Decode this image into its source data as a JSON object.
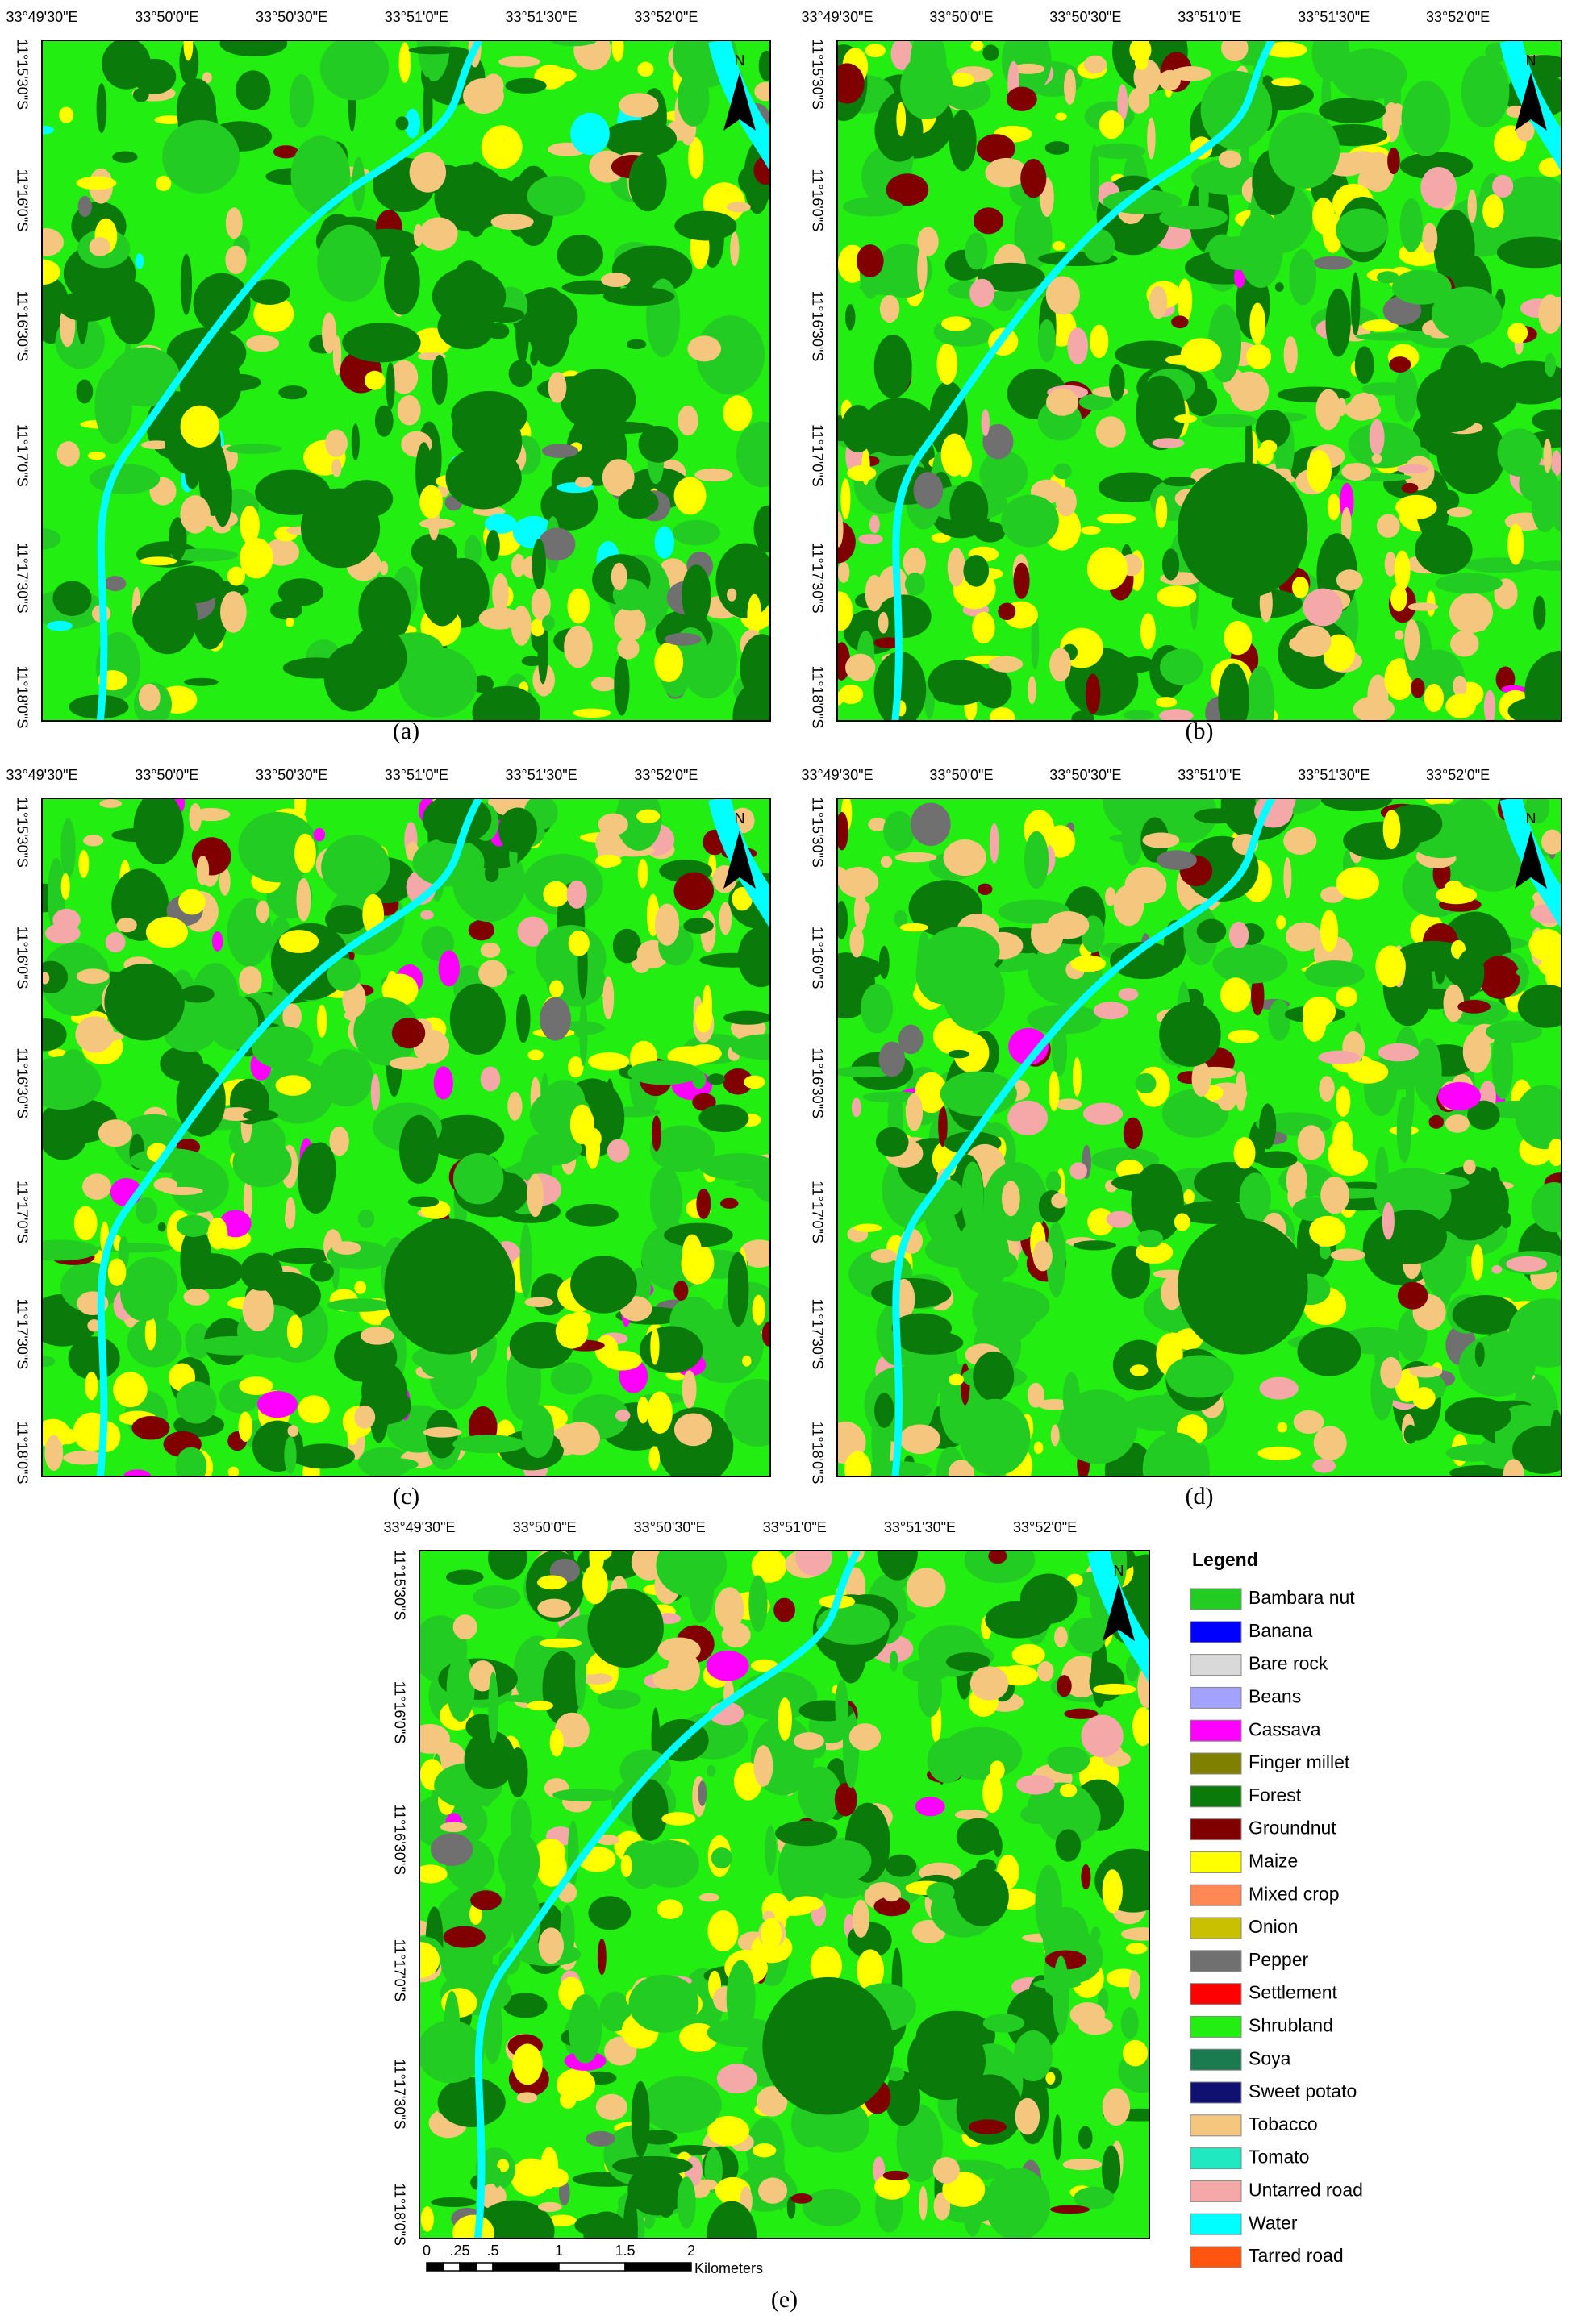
{
  "panels": [
    {
      "label": "(a)",
      "x_labels": [
        "33°49'30\"E",
        "33°50'0\"E",
        "33°50'30\"E",
        "33°51'0\"E",
        "33°51'30\"E",
        "33°52'0\"E"
      ],
      "y_labels": [
        "11°15'30\"S",
        "11°16'0\"S",
        "11°16'30\"S",
        "11°17'0\"S",
        "11°17'30\"S",
        "11°18'0\"S"
      ],
      "north": "N"
    },
    {
      "label": "(b)",
      "x_labels": [
        "33°49'30\"E",
        "33°50'0\"E",
        "33°50'30\"E",
        "33°51'0\"E",
        "33°51'30\"E",
        "33°52'0\"E"
      ],
      "y_labels": [
        "11°15'30\"S",
        "11°16'0\"S",
        "11°16'30\"S",
        "11°17'0\"S",
        "11°17'30\"S",
        "11°18'0\"S"
      ],
      "north": "N"
    },
    {
      "label": "(c)",
      "x_labels": [
        "33°49'30\"E",
        "33°50'0\"E",
        "33°50'30\"E",
        "33°51'0\"E",
        "33°51'30\"E",
        "33°52'0\"E"
      ],
      "y_labels": [
        "11°15'30\"S",
        "11°16'0\"S",
        "11°16'30\"S",
        "11°17'0\"S",
        "11°17'30\"S",
        "11°18'0\"S"
      ],
      "north": "N"
    },
    {
      "label": "(d)",
      "x_labels": [
        "33°49'30\"E",
        "33°50'0\"E",
        "33°50'30\"E",
        "33°51'0\"E",
        "33°51'30\"E",
        "33°52'0\"E"
      ],
      "y_labels": [
        "11°15'30\"S",
        "11°16'0\"S",
        "11°16'30\"S",
        "11°17'0\"S",
        "11°17'30\"S",
        "11°18'0\"S"
      ],
      "north": "N"
    },
    {
      "label": "(e)",
      "x_labels": [
        "33°49'30\"E",
        "33°50'0\"E",
        "33°50'30\"E",
        "33°51'0\"E",
        "33°51'30\"E",
        "33°52'0\"E"
      ],
      "y_labels": [
        "11°15'30\"S",
        "11°16'0\"S",
        "11°16'30\"S",
        "11°17'0\"S",
        "11°17'30\"S",
        "11°18'0\"S"
      ],
      "north": "N"
    }
  ],
  "legend": {
    "title": "Legend",
    "items": [
      {
        "name": "Bambara nut",
        "color": "#22cc22"
      },
      {
        "name": "Banana",
        "color": "#0000ff"
      },
      {
        "name": "Bare rock",
        "color": "#d9d9d9"
      },
      {
        "name": "Beans",
        "color": "#a3a3ff"
      },
      {
        "name": "Cassava",
        "color": "#ff00ff"
      },
      {
        "name": "Finger millet",
        "color": "#808000"
      },
      {
        "name": "Forest",
        "color": "#0a7a0a"
      },
      {
        "name": "Groundnut",
        "color": "#800000"
      },
      {
        "name": "Maize",
        "color": "#ffff00"
      },
      {
        "name": "Mixed crop",
        "color": "#ff8855"
      },
      {
        "name": "Onion",
        "color": "#c8c000"
      },
      {
        "name": "Pepper",
        "color": "#707070"
      },
      {
        "name": "Settlement",
        "color": "#ff0000"
      },
      {
        "name": "Shrubland",
        "color": "#22ee11"
      },
      {
        "name": "Soya",
        "color": "#1a7a50"
      },
      {
        "name": "Sweet potato",
        "color": "#101070"
      },
      {
        "name": "Tobacco",
        "color": "#f5c77e"
      },
      {
        "name": "Tomato",
        "color": "#20e8c0"
      },
      {
        "name": "Untarred road",
        "color": "#f5a8a8"
      },
      {
        "name": "Water",
        "color": "#00ffff"
      },
      {
        "name": "Tarred road",
        "color": "#ff5511"
      }
    ]
  },
  "scale_bar": {
    "ticks": [
      "0",
      ".25",
      ".5",
      "1",
      "1.5",
      "2"
    ],
    "unit": "Kilometers"
  }
}
